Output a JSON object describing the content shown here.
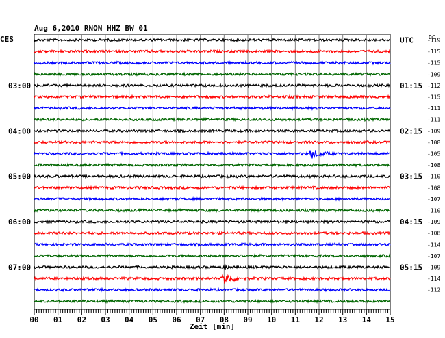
{
  "chart_data": {
    "type": "line",
    "title": "Aug 6,2010    RNON HHZ BW 01",
    "left_label": "CES",
    "right_label": "UTC",
    "dc_label": "DC",
    "xlabel": "Zeit [min]",
    "xlim": [
      0,
      15
    ],
    "x_ticks": [
      "00",
      "01",
      "02",
      "03",
      "04",
      "05",
      "06",
      "07",
      "08",
      "09",
      "10",
      "11",
      "12",
      "13",
      "14",
      "15"
    ],
    "trace_colors": [
      "#000000",
      "#ff0000",
      "#0000ff",
      "#006600"
    ],
    "left_hour_labels": [
      {
        "trace": 4,
        "text": "03:00"
      },
      {
        "trace": 8,
        "text": "04:00"
      },
      {
        "trace": 12,
        "text": "05:00"
      },
      {
        "trace": 16,
        "text": "06:00"
      },
      {
        "trace": 20,
        "text": "07:00"
      }
    ],
    "right_hour_labels": [
      {
        "trace": 0,
        "text": "UTC"
      },
      {
        "trace": 4,
        "text": "01:15"
      },
      {
        "trace": 8,
        "text": "02:15"
      },
      {
        "trace": 12,
        "text": "03:15"
      },
      {
        "trace": 16,
        "text": "04:15"
      },
      {
        "trace": 20,
        "text": "05:15"
      }
    ],
    "dc_values": [
      "-119",
      "-115",
      "-115",
      "-109",
      "-112",
      "-115",
      "-111",
      "-111",
      "-109",
      "-108",
      "-105",
      "-108",
      "-110",
      "-108",
      "-107",
      "-110",
      "-109",
      "-108",
      "-114",
      "-107",
      "-109",
      "-114",
      "-112"
    ],
    "traces": 24,
    "events": [
      {
        "trace": 10,
        "start_min": 11.6,
        "peak": 8,
        "duration_min": 1.2
      },
      {
        "trace": 21,
        "start_min": 7.9,
        "peak": 12,
        "duration_min": 1.0
      },
      {
        "trace": 20,
        "start_min": 8.0,
        "peak": 5,
        "duration_min": 0.3
      }
    ]
  }
}
